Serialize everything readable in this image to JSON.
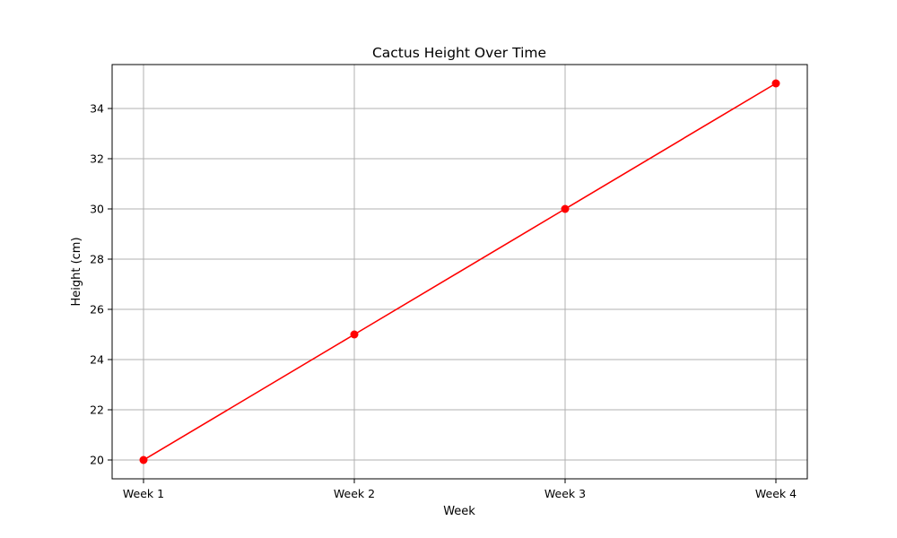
{
  "chart_data": {
    "type": "line",
    "title": "Cactus Height Over Time",
    "xlabel": "Week",
    "ylabel": "Height (cm)",
    "categories": [
      "Week 1",
      "Week 2",
      "Week 3",
      "Week 4"
    ],
    "series": [
      {
        "values": [
          20,
          25,
          30,
          35
        ],
        "color": "#ff0000",
        "marker": "circle"
      }
    ],
    "ylim": [
      19.25,
      35.75
    ],
    "yticks": [
      20,
      22,
      24,
      26,
      28,
      30,
      32,
      34
    ],
    "grid": true
  }
}
